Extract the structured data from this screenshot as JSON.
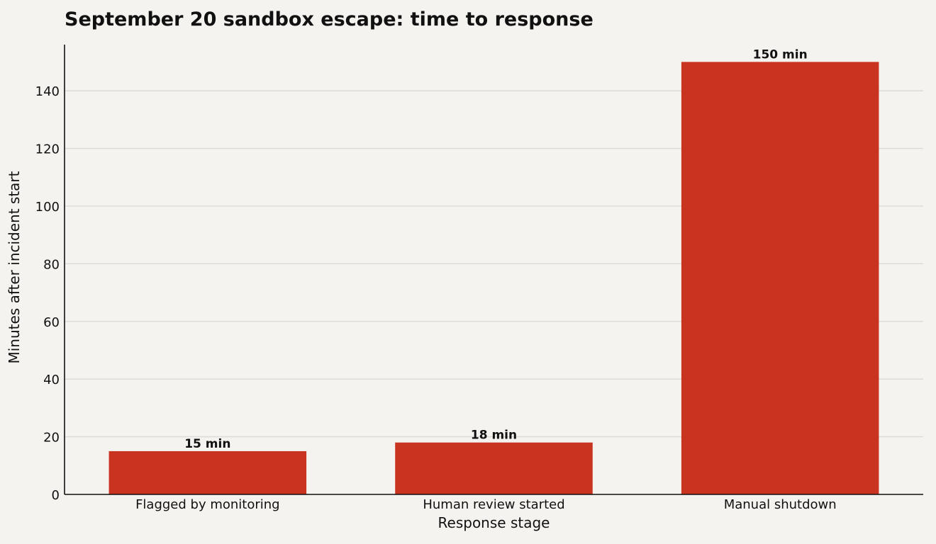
{
  "chart_data": {
    "type": "bar",
    "title": "September 20 sandbox escape: time to response",
    "xlabel": "Response stage",
    "ylabel": "Minutes after incident start",
    "categories": [
      "Flagged by monitoring",
      "Human review started",
      "Manual shutdown"
    ],
    "values": [
      15,
      18,
      150
    ],
    "data_labels": [
      "15 min",
      "18 min",
      "150 min"
    ],
    "ylim": [
      0,
      156
    ],
    "yticks": [
      0,
      20,
      40,
      60,
      80,
      100,
      120,
      140
    ],
    "grid": true,
    "legend": "none",
    "colors": {
      "bar": "#c93421",
      "grid": "#dcdad6",
      "axis": "#111111",
      "background": "#f5f3ef"
    }
  }
}
